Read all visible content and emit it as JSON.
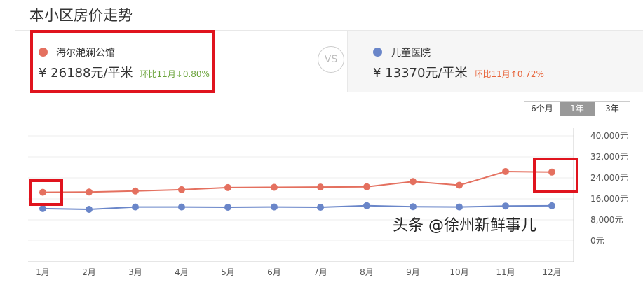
{
  "header": {
    "title": "本小区房价走势"
  },
  "compare": {
    "left": {
      "name": "海尔滟澜公馆",
      "price": "¥ 26188元/平米",
      "change": "环比11月↓0.80%",
      "color": "#e4705f",
      "change_color": "#6aa33a"
    },
    "vs": "VS",
    "right": {
      "name": "儿童医院",
      "price": "¥ 13370元/平米",
      "change": "环比11月↑0.72%",
      "color": "#6a86c9",
      "change_color": "#e8663c"
    }
  },
  "range_tabs": [
    {
      "label": "6个月",
      "active": false
    },
    {
      "label": "1年",
      "active": true
    },
    {
      "label": "3年",
      "active": false
    }
  ],
  "watermark": "头条 @徐州新鲜事儿",
  "chart_data": {
    "type": "line",
    "categories": [
      "1月",
      "2月",
      "3月",
      "4月",
      "5月",
      "6月",
      "7月",
      "8月",
      "9月",
      "10月",
      "11月",
      "12月"
    ],
    "y_ticks": [
      "40,000元",
      "32,000元",
      "24,000元",
      "16,000元",
      "8,000元",
      "0元"
    ],
    "ylim": [
      -8000,
      40000
    ],
    "grid": true,
    "y_axis_side": "right",
    "series": [
      {
        "name": "海尔滟澜公馆",
        "color": "#e4705f",
        "values": [
          18500,
          18600,
          19000,
          19500,
          20300,
          20400,
          20500,
          20600,
          22600,
          21200,
          26400,
          26188
        ]
      },
      {
        "name": "儿童医院",
        "color": "#6a86c9",
        "values": [
          12300,
          12000,
          12900,
          12900,
          12800,
          12900,
          12800,
          13400,
          13000,
          12900,
          13275,
          13370
        ]
      }
    ]
  }
}
